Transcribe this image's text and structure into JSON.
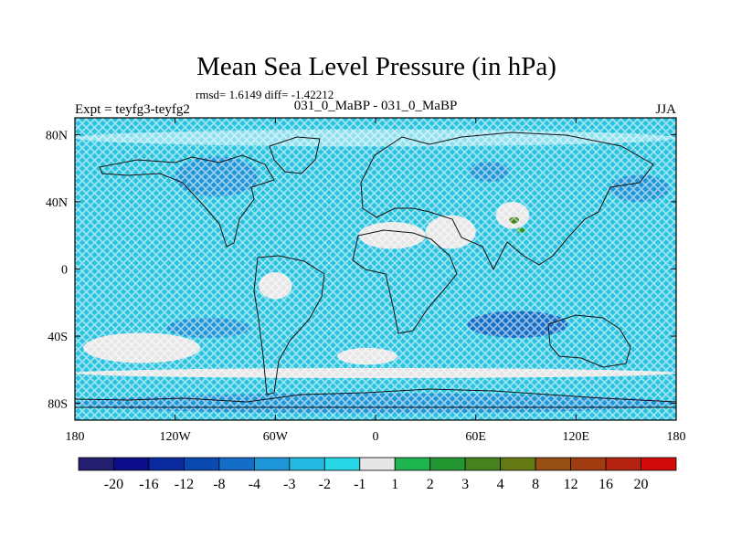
{
  "chart_data": {
    "type": "heatmap",
    "title": "Mean Sea Level Pressure (in hPa)",
    "stats_label": "rmsd= 1.6149 diff= -1.42212",
    "left_label": "Expt = teyfg3-teyfg2",
    "center_label": "031_0_MaBP - 031_0_MaBP",
    "right_label": "JJA",
    "x_axis": {
      "range": [
        -180,
        180
      ],
      "ticks": [
        {
          "value": -180,
          "label": "180"
        },
        {
          "value": -120,
          "label": "120W"
        },
        {
          "value": -60,
          "label": "60W"
        },
        {
          "value": 0,
          "label": "0"
        },
        {
          "value": 60,
          "label": "60E"
        },
        {
          "value": 120,
          "label": "120E"
        },
        {
          "value": 180,
          "label": "180"
        }
      ]
    },
    "y_axis": {
      "range": [
        -90,
        90
      ],
      "ticks": [
        {
          "value": 80,
          "label": "80N"
        },
        {
          "value": 40,
          "label": "40N"
        },
        {
          "value": 0,
          "label": "0"
        },
        {
          "value": -40,
          "label": "40S"
        },
        {
          "value": -80,
          "label": "80S"
        }
      ]
    },
    "colorbar": {
      "colors": [
        "#241e6e",
        "#0c0c8c",
        "#0a2aa0",
        "#0a4ab0",
        "#146ec8",
        "#1e96d7",
        "#23b9e1",
        "#28d7e6",
        "#e6e6e6",
        "#1eb450",
        "#239632",
        "#46821e",
        "#647814",
        "#965014",
        "#a03c0f",
        "#b4230f",
        "#d20a0a"
      ],
      "labels": [
        "-20",
        "-16",
        "-12",
        "-8",
        "-4",
        "-3",
        "-2",
        "-1",
        "1",
        "2",
        "3",
        "4",
        "8",
        "12",
        "16",
        "20"
      ]
    },
    "field": {
      "background_color": "#28c3e0",
      "regions": [
        {
          "name": "south-pacific-high",
          "lon": -140,
          "lat": -47,
          "rx": 35,
          "ry": 9,
          "color": "#e6e6e6"
        },
        {
          "name": "south-atlantic-high",
          "lon": -5,
          "lat": -52,
          "rx": 18,
          "ry": 5,
          "color": "#e6e6e6"
        },
        {
          "name": "southern-ocean-band",
          "lon": 0,
          "lat": -62,
          "rx": 180,
          "ry": 3,
          "color": "#e6e6e6"
        },
        {
          "name": "antarctic-coast",
          "lon": 0,
          "lat": -80,
          "rx": 180,
          "ry": 6,
          "color": "#1e96d7"
        },
        {
          "name": "indian-ocean-low",
          "lon": 85,
          "lat": -33,
          "rx": 30,
          "ry": 8,
          "color": "#146ec8"
        },
        {
          "name": "south-pacific-low",
          "lon": -100,
          "lat": -35,
          "rx": 25,
          "ry": 6,
          "color": "#1e96d7"
        },
        {
          "name": "north-pacific-low",
          "lon": 158,
          "lat": 48,
          "rx": 18,
          "ry": 8,
          "color": "#1e96d7"
        },
        {
          "name": "north-america-low",
          "lon": -95,
          "lat": 55,
          "rx": 25,
          "ry": 12,
          "color": "#1e96d7"
        },
        {
          "name": "arctic-pale",
          "lon": 0,
          "lat": 78,
          "rx": 180,
          "ry": 5,
          "color": "#8fe0ef"
        },
        {
          "name": "central-asia-high",
          "lon": 82,
          "lat": 32,
          "rx": 10,
          "ry": 8,
          "color": "#e6e6e6"
        },
        {
          "name": "asia-positive-1",
          "lon": 83,
          "lat": 29,
          "rx": 3,
          "ry": 2,
          "color": "#46821e"
        },
        {
          "name": "asia-positive-2",
          "lon": 87,
          "lat": 23,
          "rx": 3,
          "ry": 1.6,
          "color": "#239632"
        },
        {
          "name": "arabia-pale",
          "lon": 45,
          "lat": 22,
          "rx": 15,
          "ry": 10,
          "color": "#e6e6e6"
        },
        {
          "name": "sahara-pale",
          "lon": 10,
          "lat": 20,
          "rx": 20,
          "ry": 8,
          "color": "#e6e6e6"
        },
        {
          "name": "amazon-pale",
          "lon": -60,
          "lat": -10,
          "rx": 10,
          "ry": 8,
          "color": "#e6e6e6"
        },
        {
          "name": "europe-low",
          "lon": 68,
          "lat": 58,
          "rx": 12,
          "ry": 6,
          "color": "#1e96d7"
        }
      ]
    }
  }
}
